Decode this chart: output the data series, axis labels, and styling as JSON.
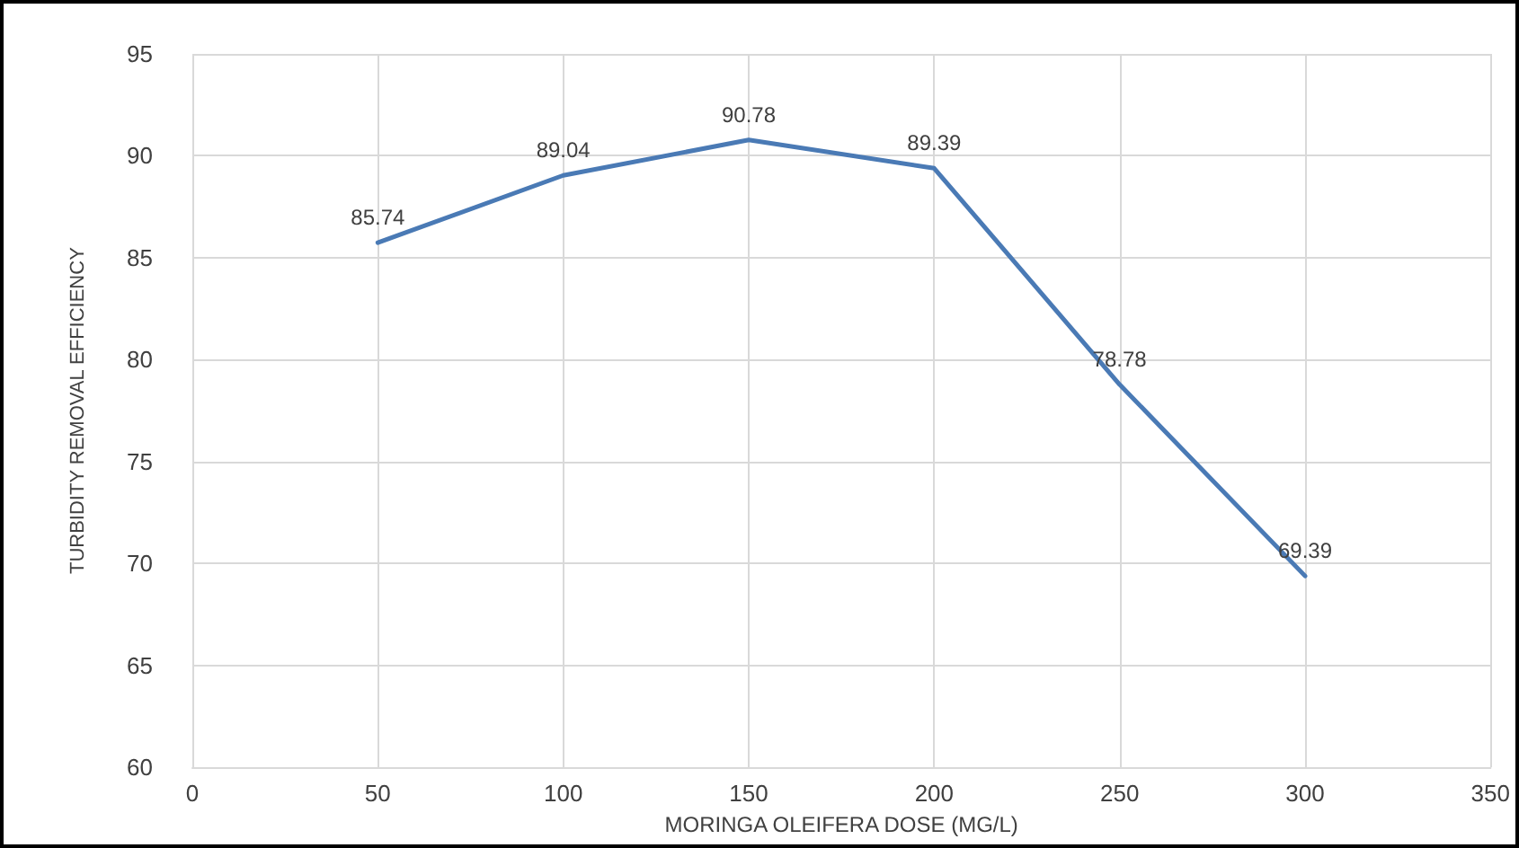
{
  "chart_data": {
    "type": "line",
    "xlabel": "MORINGA OLEIFERA DOSE (MG/L)",
    "ylabel": "TURBIDITY REMOVAL EFFICIENCY",
    "x": [
      50,
      100,
      150,
      200,
      250,
      300
    ],
    "series": [
      {
        "color": "#4a7ab5",
        "values": [
          85.74,
          89.04,
          90.78,
          89.39,
          78.78,
          69.39
        ]
      }
    ],
    "xlim": [
      0,
      350
    ],
    "xticks": [
      0,
      50,
      100,
      150,
      200,
      250,
      300,
      350
    ],
    "ylim": [
      60,
      95
    ],
    "yticks": [
      60,
      65,
      70,
      75,
      80,
      85,
      90,
      95
    ],
    "grid": true,
    "data_labels": true,
    "marker": "none",
    "line_style": "solid"
  }
}
